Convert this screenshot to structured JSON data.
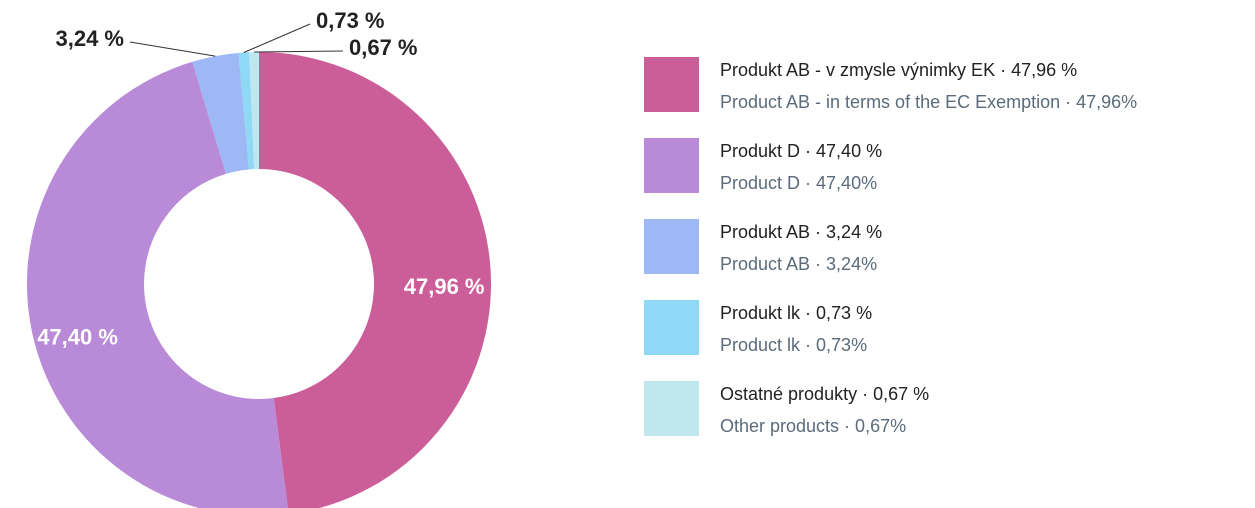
{
  "chart_data": {
    "type": "pie",
    "categories": [
      "Produkt AB - v zmysle výnimky EK · 47,96 %",
      "Produkt D · 47,40 %",
      "Produkt AB · 3,24 %",
      "Produkt lk · 0,73 %",
      "Ostatné produkty · 0,67 %"
    ],
    "categories_en": [
      "Product AB - in terms of the EC Exemption · 47,96%",
      "Product D · 47,40%",
      "Product AB · 3,24%",
      "Product lk · 0,73%",
      "Other products · 0,67%"
    ],
    "values": [
      47.96,
      47.4,
      3.24,
      0.73,
      0.67
    ],
    "value_labels": [
      "47,96 %",
      "47,40 %",
      "3,24 %",
      "0,73 %",
      "0,67 %"
    ],
    "colors": [
      "#cb5d98",
      "#b98ad8",
      "#9db8f5",
      "#8fd9f7",
      "#bfe8ee"
    ]
  }
}
